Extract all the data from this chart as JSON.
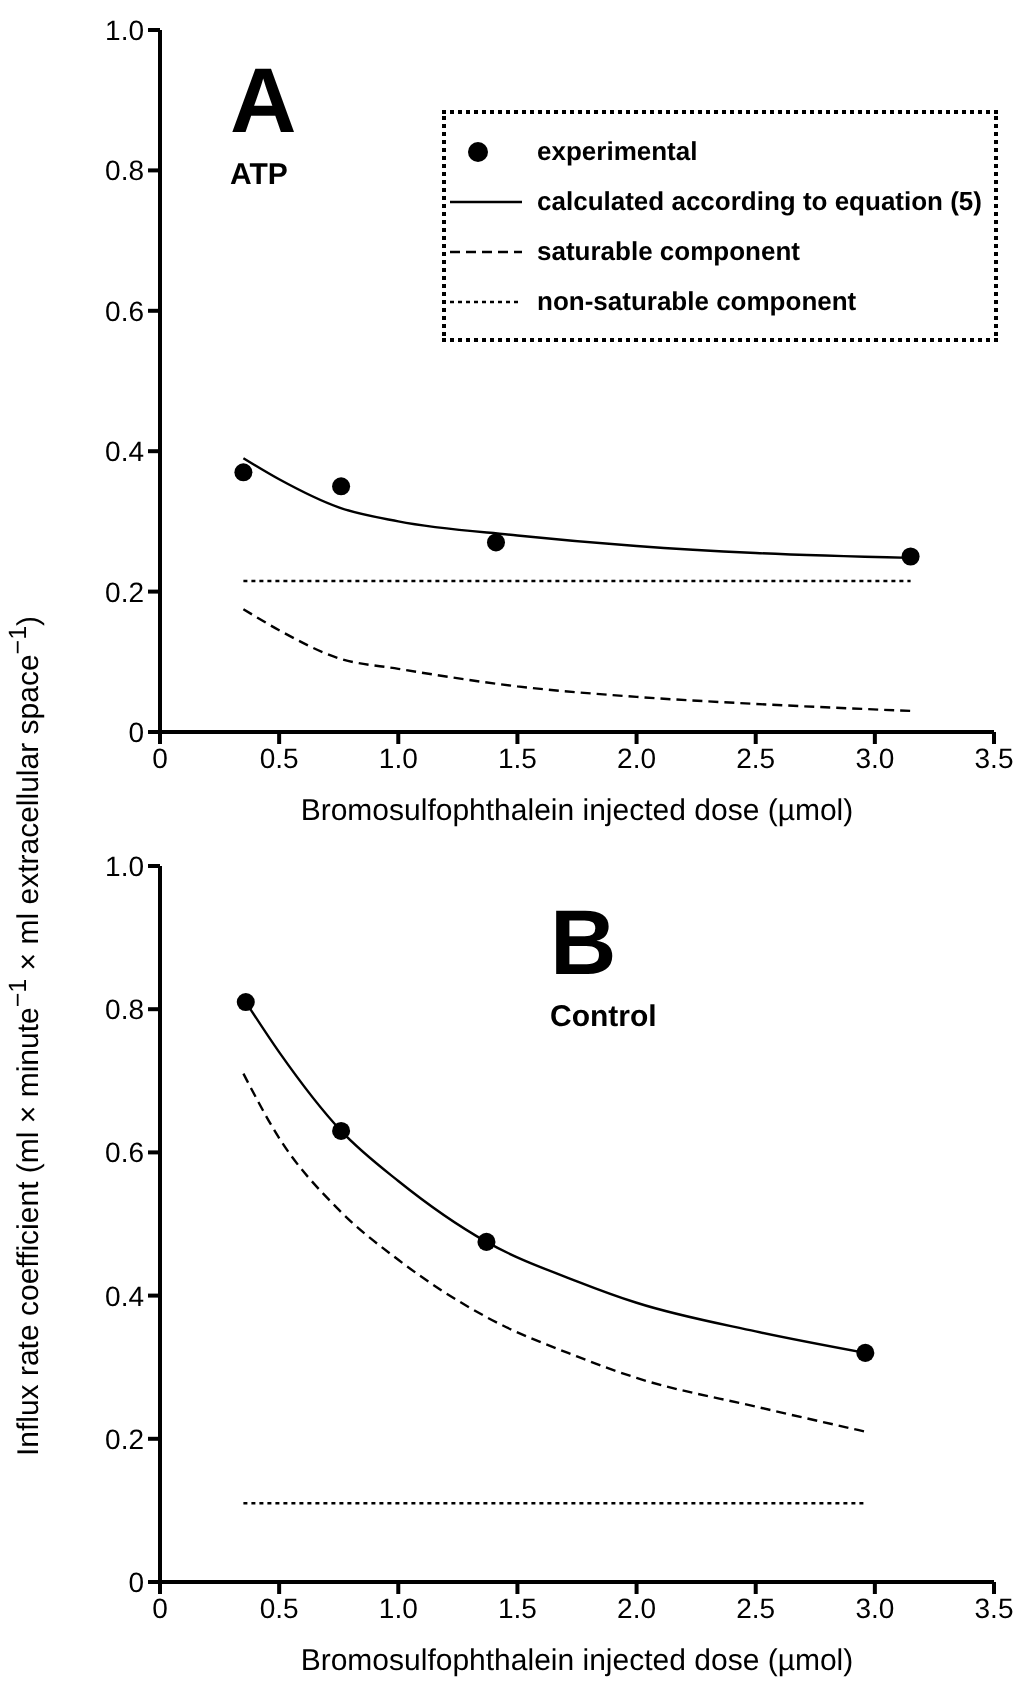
{
  "chart_data": [
    {
      "type": "line",
      "title": "A",
      "subtitle": "ATP",
      "xlabel": "Bromosulfophthalein injected dose (µmol)",
      "xlim": [
        0,
        3.5
      ],
      "ylim": [
        0,
        1
      ],
      "xticks": [
        0,
        0.5,
        {
          "value": 1,
          "label": "1.0"
        },
        1.5,
        {
          "value": 2,
          "label": "2.0"
        },
        2.5,
        {
          "value": 3,
          "label": "3.0"
        },
        3.5
      ],
      "yticks": [
        0,
        0.2,
        0.4,
        0.6,
        0.8,
        {
          "value": 1,
          "label": "1.0"
        }
      ],
      "grid": false,
      "legend": "top right",
      "series": [
        {
          "name": "experimental",
          "type": "scatter",
          "marker": "circle",
          "color": "#000000",
          "x": [
            0.35,
            0.76,
            1.41,
            3.15
          ],
          "values": [
            0.37,
            0.35,
            0.27,
            0.25
          ]
        },
        {
          "name": "calculated according to equation (5)",
          "type": "line",
          "line_style": "solid",
          "marker": "none",
          "color": "#000000",
          "x": [
            0.35,
            0.5,
            0.75,
            1.0,
            1.5,
            2.0,
            2.5,
            3.15
          ],
          "values": [
            0.39,
            0.36,
            0.32,
            0.3,
            0.28,
            0.265,
            0.255,
            0.248
          ]
        },
        {
          "name": "saturable component",
          "type": "line",
          "line_style": "dashed",
          "marker": "none",
          "color": "#000000",
          "x": [
            0.35,
            0.5,
            0.75,
            1.0,
            1.5,
            2.0,
            2.5,
            3.15
          ],
          "values": [
            0.175,
            0.145,
            0.105,
            0.09,
            0.065,
            0.05,
            0.04,
            0.03
          ]
        },
        {
          "name": "non-saturable component",
          "type": "line",
          "line_style": "dotted",
          "marker": "none",
          "color": "#000000",
          "x": [
            0.35,
            3.15
          ],
          "values": [
            0.215,
            0.215
          ]
        }
      ]
    },
    {
      "type": "line",
      "title": "B",
      "subtitle": "Control",
      "xlabel": "Bromosulfophthalein injected dose (µmol)",
      "ylabel": "Influx rate coefficient (ml × minute$^{−1}$ × ml extracellular space$^{−1}$)",
      "xlim": [
        0,
        3.5
      ],
      "ylim": [
        0,
        1
      ],
      "xticks": [
        0,
        0.5,
        {
          "value": 1,
          "label": "1.0"
        },
        1.5,
        {
          "value": 2,
          "label": "2.0"
        },
        2.5,
        {
          "value": 3,
          "label": "3.0"
        },
        3.5
      ],
      "yticks": [
        0,
        0.2,
        0.4,
        0.6,
        0.8,
        {
          "value": 1,
          "label": "1.0"
        }
      ],
      "grid": false,
      "legend": false,
      "series": [
        {
          "type": "scatter",
          "marker": "circle",
          "color": "#000000",
          "x": [
            0.36,
            0.76,
            1.37,
            2.96
          ],
          "values": [
            0.81,
            0.63,
            0.475,
            0.32
          ]
        },
        {
          "type": "line",
          "line_style": "solid",
          "marker": "none",
          "color": "#000000",
          "x": [
            0.36,
            0.5,
            0.76,
            1.0,
            1.37,
            1.75,
            2.0,
            2.5,
            2.96
          ],
          "values": [
            0.81,
            0.74,
            0.63,
            0.56,
            0.475,
            0.42,
            0.39,
            0.35,
            0.32
          ]
        },
        {
          "type": "line",
          "line_style": "dashed",
          "marker": "none",
          "color": "#000000",
          "x": [
            0.35,
            0.5,
            0.75,
            1.0,
            1.37,
            1.75,
            2.0,
            2.5,
            2.96
          ],
          "values": [
            0.71,
            0.62,
            0.52,
            0.45,
            0.37,
            0.315,
            0.285,
            0.245,
            0.21
          ]
        },
        {
          "type": "line",
          "line_style": "dotted",
          "marker": "none",
          "color": "#000000",
          "x": [
            0.35,
            2.96
          ],
          "values": [
            0.11,
            0.11
          ]
        }
      ]
    }
  ]
}
